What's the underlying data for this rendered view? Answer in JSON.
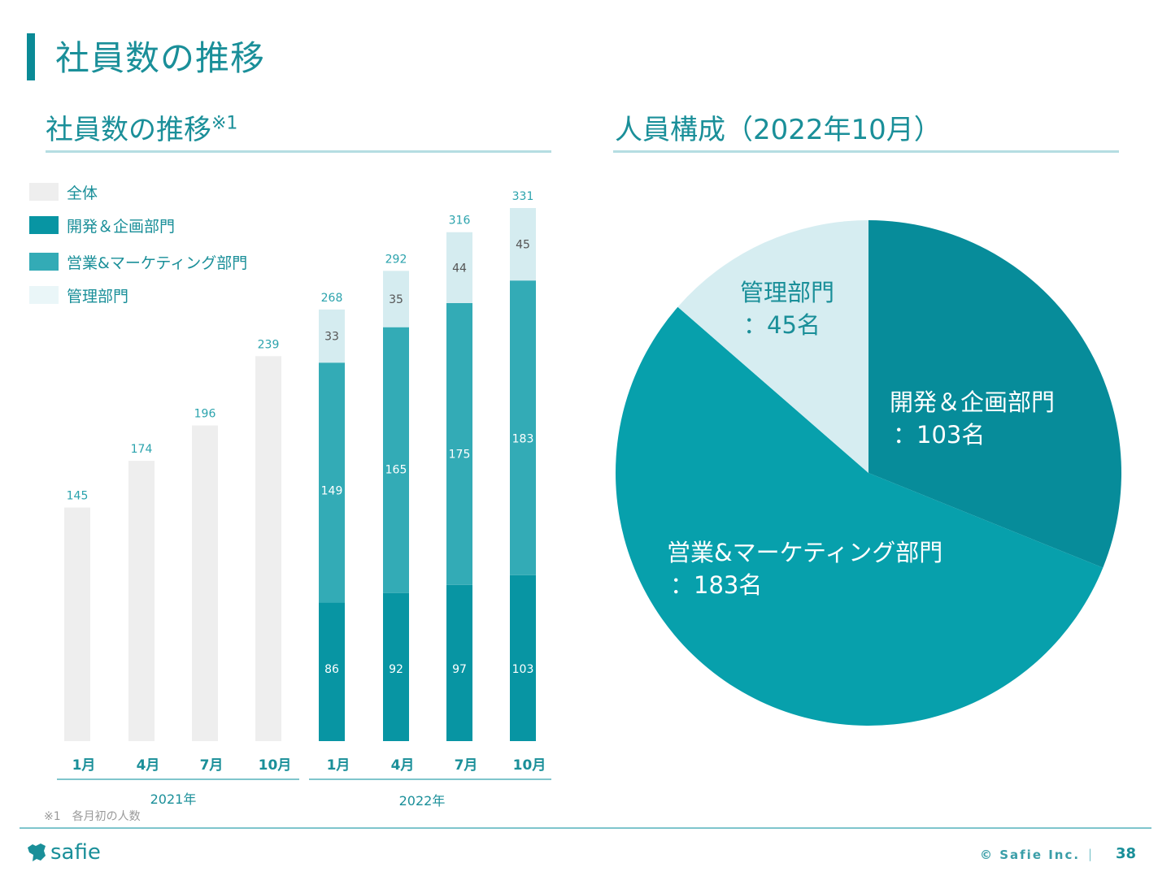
{
  "page": {
    "title": "社員数の推移",
    "footnote": "※1　各月初の人数",
    "logo_text": "safie",
    "copyright": "© Safie Inc.",
    "separator": "|",
    "page_number": "38"
  },
  "colors": {
    "accent": "#0a8a96",
    "total": "#eeeeee",
    "dev": "#0895a3",
    "sales": "#33abb6",
    "admin": "#d5ecf0",
    "rule": "#b5dde2"
  },
  "chart_data": [
    {
      "type": "bar",
      "stacked": true,
      "title": "社員数の推移",
      "title_note": "※1",
      "xlabel": "",
      "ylabel": "",
      "legend_position": "top-left",
      "legend": [
        "全体",
        "開発＆企画部門",
        "営業&マーケティング部門",
        "管理部門"
      ],
      "categories": [
        "1月",
        "4月",
        "7月",
        "10月",
        "1月",
        "4月",
        "7月",
        "10月"
      ],
      "groups": [
        {
          "label": "2021年",
          "categories": [
            "1月",
            "4月",
            "7月",
            "10月"
          ]
        },
        {
          "label": "2022年",
          "categories": [
            "1月",
            "4月",
            "7月",
            "10月"
          ]
        }
      ],
      "series": [
        {
          "name": "全体",
          "key": "total",
          "values": [
            145,
            174,
            196,
            239,
            null,
            null,
            null,
            null
          ]
        },
        {
          "name": "開発＆企画部門",
          "key": "dev",
          "values": [
            null,
            null,
            null,
            null,
            86,
            92,
            97,
            103
          ]
        },
        {
          "name": "営業&マーケティング部門",
          "key": "sales",
          "values": [
            null,
            null,
            null,
            null,
            149,
            165,
            175,
            183
          ]
        },
        {
          "name": "管理部門",
          "key": "admin",
          "values": [
            null,
            null,
            null,
            null,
            33,
            35,
            44,
            45
          ]
        }
      ],
      "totals": [
        145,
        174,
        196,
        239,
        268,
        292,
        316,
        331
      ],
      "ylim": [
        0,
        331
      ]
    },
    {
      "type": "pie",
      "title": "人員構成（2022年10月）",
      "slices": [
        {
          "name": "開発＆企画部門",
          "key": "dev",
          "value": 103,
          "label_line2": "：103名"
        },
        {
          "name": "営業&マーケティング部門",
          "key": "sales",
          "value": 183,
          "label_line2": "：183名"
        },
        {
          "name": "管理部門",
          "key": "admin",
          "value": 45,
          "label_line2": "：45名"
        }
      ],
      "start": "12 o'clock, clockwise"
    }
  ]
}
